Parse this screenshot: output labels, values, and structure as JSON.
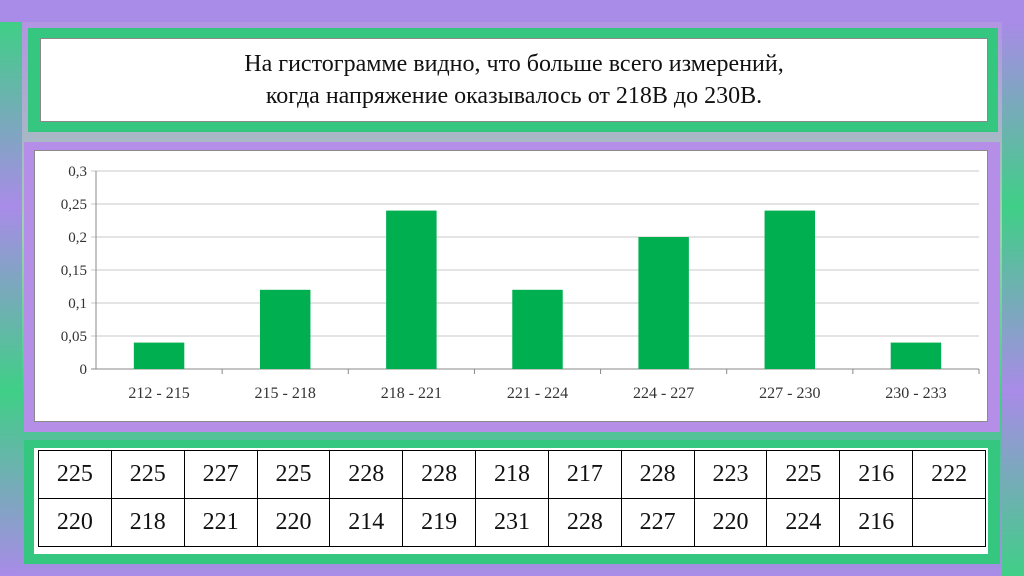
{
  "title_lines": [
    "На гистограмме видно, что больше всего измерений,",
    "когда напряжение оказывалось от 218В до 230В."
  ],
  "chart_data": {
    "type": "bar",
    "categories": [
      "212 - 215",
      "215 - 218",
      "218 - 221",
      "221 - 224",
      "224 - 227",
      "227 - 230",
      "230 - 233"
    ],
    "values": [
      0.04,
      0.12,
      0.24,
      0.12,
      0.2,
      0.24,
      0.04
    ],
    "ylim": [
      0,
      0.3
    ],
    "yticks": [
      0,
      0.05,
      0.1,
      0.15,
      0.2,
      0.25,
      0.3
    ],
    "ytick_labels": [
      "0",
      "0,05",
      "0,1",
      "0,15",
      "0,2",
      "0,25",
      "0,3"
    ],
    "bar_color": "#00b050",
    "grid": true,
    "legend": "none"
  },
  "table": {
    "rows": [
      [
        "225",
        "225",
        "227",
        "225",
        "228",
        "228",
        "218",
        "217",
        "228",
        "223",
        "225",
        "216",
        "222"
      ],
      [
        "220",
        "218",
        "221",
        "220",
        "214",
        "219",
        "231",
        "228",
        "227",
        "220",
        "224",
        "216",
        ""
      ]
    ]
  }
}
